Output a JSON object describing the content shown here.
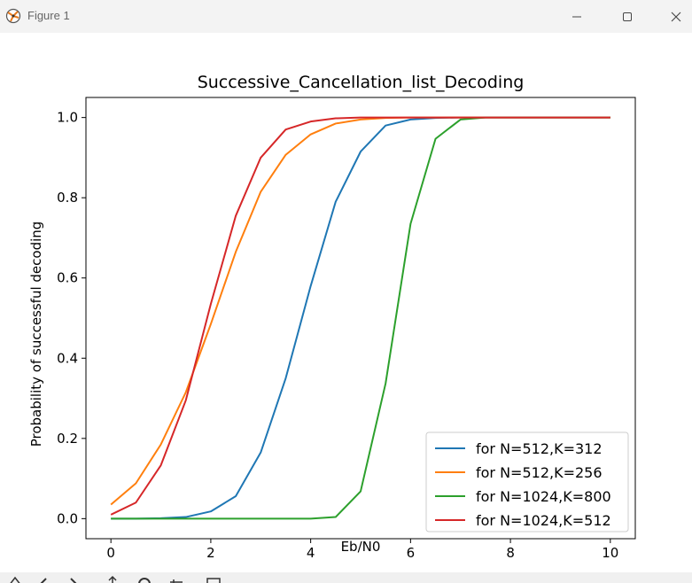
{
  "window": {
    "title": "Figure 1",
    "controls": {
      "minimize": "minimize-icon",
      "maximize": "maximize-icon",
      "close": "close-icon"
    }
  },
  "toolbar": {
    "icons": [
      "home-icon",
      "back-icon",
      "forward-icon",
      "pan-icon",
      "zoom-icon",
      "configure-icon",
      "save-icon"
    ]
  },
  "chart_data": {
    "type": "line",
    "title": "Successive_Cancellation_list_Decoding",
    "xlabel": "Eb/N0",
    "ylabel": "Probability of successful decoding",
    "xlim": [
      -0.5,
      10.5
    ],
    "ylim": [
      -0.05,
      1.05
    ],
    "xticks": [
      0,
      2,
      4,
      6,
      8,
      10
    ],
    "yticks": [
      0.0,
      0.2,
      0.4,
      0.6,
      0.8,
      1.0
    ],
    "xtick_labels": [
      "0",
      "2",
      "4",
      "6",
      "8",
      "10"
    ],
    "ytick_labels": [
      "0.0",
      "0.2",
      "0.4",
      "0.6",
      "0.8",
      "1.0"
    ],
    "grid": false,
    "legend_position": "lower-right",
    "x": [
      0,
      0.5,
      1,
      1.5,
      2,
      2.5,
      3,
      3.5,
      4,
      4.5,
      5,
      5.5,
      6,
      6.5,
      7,
      7.5,
      8,
      8.5,
      9,
      9.5,
      10
    ],
    "series": [
      {
        "name": "for N=512,K=312",
        "color": "#1f77b4",
        "values": [
          0.0,
          0.0,
          0.001,
          0.004,
          0.018,
          0.056,
          0.165,
          0.35,
          0.58,
          0.79,
          0.915,
          0.98,
          0.995,
          0.999,
          1.0,
          1.0,
          1.0,
          1.0,
          1.0,
          1.0,
          1.0
        ]
      },
      {
        "name": "for N=512,K=256",
        "color": "#ff7f0e",
        "values": [
          0.035,
          0.088,
          0.185,
          0.315,
          0.485,
          0.665,
          0.815,
          0.907,
          0.958,
          0.985,
          0.995,
          0.999,
          1.0,
          1.0,
          1.0,
          1.0,
          1.0,
          1.0,
          1.0,
          1.0,
          1.0
        ]
      },
      {
        "name": "for N=1024,K=800",
        "color": "#2ca02c",
        "values": [
          0.0,
          0.0,
          0.0,
          0.0,
          0.0,
          0.0,
          0.0,
          0.0,
          0.0,
          0.004,
          0.068,
          0.337,
          0.735,
          0.947,
          0.995,
          1.0,
          1.0,
          1.0,
          1.0,
          1.0,
          1.0
        ]
      },
      {
        "name": "for N=1024,K=512",
        "color": "#d62728",
        "values": [
          0.01,
          0.04,
          0.133,
          0.295,
          0.535,
          0.755,
          0.9,
          0.97,
          0.99,
          0.998,
          1.0,
          1.0,
          1.0,
          1.0,
          1.0,
          1.0,
          1.0,
          1.0,
          1.0,
          1.0,
          1.0
        ]
      }
    ]
  }
}
